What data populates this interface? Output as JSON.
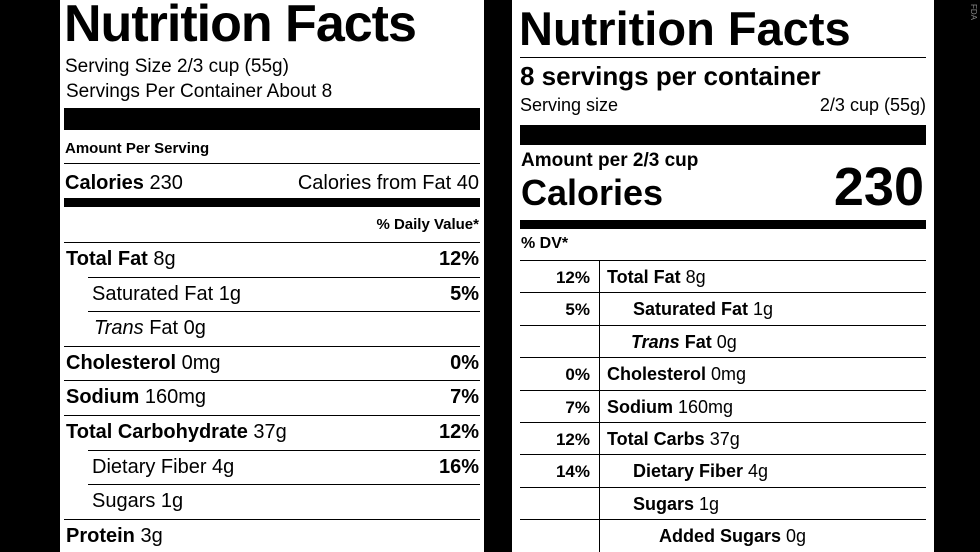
{
  "current_label": {
    "title": "Nutrition Facts",
    "serving_size": "Serving Size 2/3 cup (55g)",
    "servings_per_container": "Servings Per Container About 8",
    "amount_per_serving": "Amount Per Serving",
    "calories_label": "Calories",
    "calories_value": "230",
    "calories_from_fat": "Calories from Fat 40",
    "daily_value_header": "% Daily Value*",
    "rows": [
      {
        "bold": "Total Fat",
        "plain": " 8g",
        "pct": "12%"
      },
      {
        "bold": "",
        "plain": "Saturated Fat 1g",
        "pct": "5%"
      },
      {
        "italic": "Trans",
        "plain": " Fat 0g",
        "pct": ""
      },
      {
        "bold": "Cholesterol",
        "plain": " 0mg",
        "pct": "0%"
      },
      {
        "bold": "Sodium",
        "plain": " 160mg",
        "pct": "7%"
      },
      {
        "bold": "Total Carbohydrate",
        "plain": " 37g",
        "pct": "12%"
      },
      {
        "bold": "",
        "plain": "Dietary Fiber 4g",
        "pct": "16%"
      },
      {
        "bold": "",
        "plain": "Sugars 1g",
        "pct": ""
      },
      {
        "bold": "Protein",
        "plain": " 3g",
        "pct": ""
      }
    ]
  },
  "proposed_label": {
    "title": "Nutrition Facts",
    "servings_per_container": "8 servings per container",
    "serving_size_label": "Serving size",
    "serving_size_value": "2/3 cup (55g)",
    "amount_per": "Amount per 2/3 cup",
    "calories_label": "Calories",
    "calories_value": "230",
    "dv_header": "% DV*",
    "rows": [
      {
        "pct": "12%",
        "bold": "Total Fat",
        "plain": " 8g"
      },
      {
        "pct": "5%",
        "bold": "Saturated Fat",
        "plain": " 1g"
      },
      {
        "pct": "",
        "italic": "Trans",
        "bold": " Fat",
        "plain": " 0g"
      },
      {
        "pct": "0%",
        "bold": "Cholesterol",
        "plain": " 0mg"
      },
      {
        "pct": "7%",
        "bold": "Sodium",
        "plain": " 160mg"
      },
      {
        "pct": "12%",
        "bold": "Total Carbs",
        "plain": " 37g"
      },
      {
        "pct": "14%",
        "bold": "Dietary Fiber",
        "plain": " 4g"
      },
      {
        "pct": "",
        "bold": "Sugars",
        "plain": " 1g"
      },
      {
        "pct": "",
        "bold": "Added Sugars",
        "plain": " 0g"
      }
    ]
  },
  "credit": "FDA"
}
